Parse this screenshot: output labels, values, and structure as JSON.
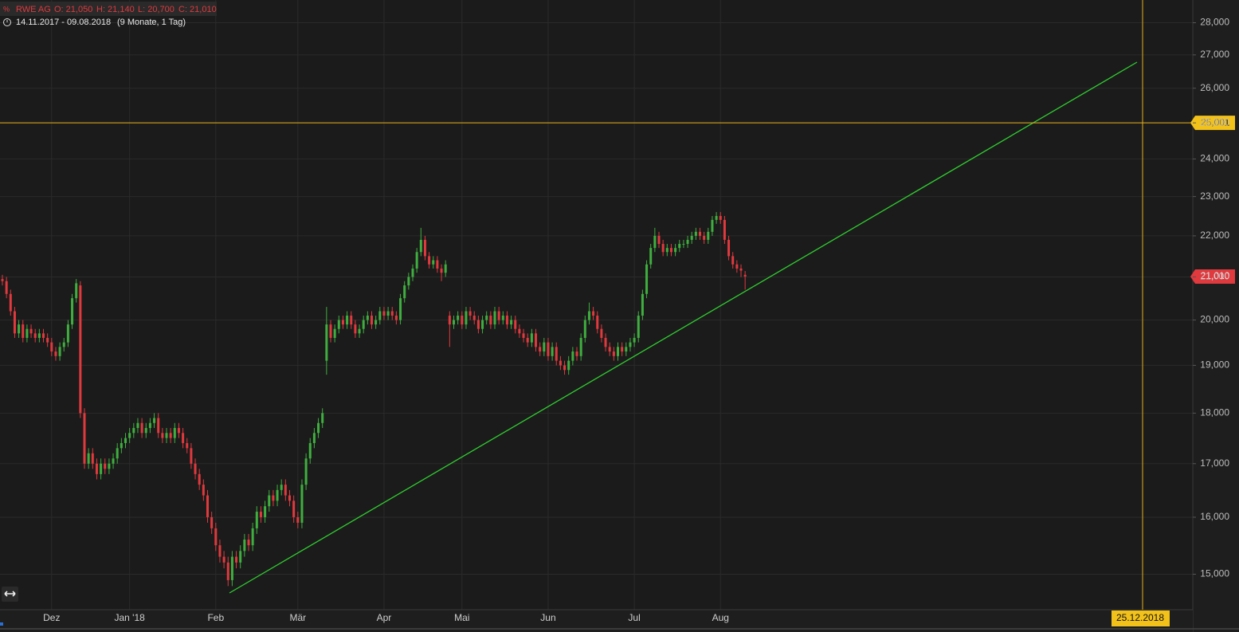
{
  "chart_data": {
    "type": "candlestick",
    "title": "RWE AG",
    "ohlc_labels": [
      "O: 21,050",
      "H: 21,140",
      "L: 20,700",
      "C: 21,010"
    ],
    "subtitle": "14.11.2017 - 09.08.2018",
    "period": "(9 Monate, 1 Tag)",
    "log_scale": true,
    "grid": true,
    "up_color": "#3fae3f",
    "down_color": "#e0393e",
    "ylim": [
      14.41,
      28.73
    ],
    "yticks": [
      {
        "value": 15,
        "label": "15,000"
      },
      {
        "value": 16,
        "label": "16,000"
      },
      {
        "value": 17,
        "label": "17,000"
      },
      {
        "value": 18,
        "label": "18,000"
      },
      {
        "value": 19,
        "label": "19,000"
      },
      {
        "value": 20,
        "label": "20,000"
      },
      {
        "value": 21,
        "label": "21,000"
      },
      {
        "value": 22,
        "label": "22,000"
      },
      {
        "value": 23,
        "label": "23,000"
      },
      {
        "value": 24,
        "label": "24,000"
      },
      {
        "value": 25,
        "label": "25,000"
      },
      {
        "value": 26,
        "label": "26,000"
      },
      {
        "value": 27,
        "label": "27,000"
      },
      {
        "value": 28,
        "label": "28,000"
      }
    ],
    "last_price": {
      "value": 21.01,
      "label": "21,010"
    },
    "crosshair": {
      "value": 25.001,
      "label": "25,001",
      "date": "25.12.2018"
    },
    "categories": [
      null,
      null,
      null,
      null,
      null,
      null,
      null,
      null,
      null,
      null,
      null,
      null,
      "Dez",
      null,
      null,
      null,
      null,
      null,
      null,
      null,
      null,
      null,
      null,
      null,
      null,
      null,
      null,
      null,
      null,
      null,
      null,
      "Jan '18",
      null,
      null,
      null,
      null,
      null,
      null,
      null,
      null,
      null,
      null,
      null,
      null,
      null,
      null,
      null,
      null,
      null,
      null,
      null,
      null,
      "Feb",
      null,
      null,
      null,
      null,
      null,
      null,
      null,
      null,
      null,
      null,
      null,
      null,
      null,
      null,
      null,
      null,
      null,
      null,
      null,
      "Mär",
      null,
      null,
      null,
      null,
      null,
      null,
      null,
      null,
      null,
      null,
      null,
      null,
      null,
      null,
      null,
      null,
      null,
      null,
      null,
      null,
      "Apr",
      null,
      null,
      null,
      null,
      null,
      null,
      null,
      null,
      null,
      null,
      null,
      null,
      null,
      null,
      null,
      null,
      null,
      null,
      "Mai",
      null,
      null,
      null,
      null,
      null,
      null,
      null,
      null,
      null,
      null,
      null,
      null,
      null,
      null,
      null,
      null,
      null,
      null,
      null,
      null,
      "Jun",
      null,
      null,
      null,
      null,
      null,
      null,
      null,
      null,
      null,
      null,
      null,
      null,
      null,
      null,
      null,
      null,
      null,
      null,
      null,
      null,
      "Jul",
      null,
      null,
      null,
      null,
      null,
      null,
      null,
      null,
      null,
      null,
      null,
      null,
      null,
      null,
      null,
      null,
      null,
      null,
      null,
      null,
      "Aug",
      null,
      null,
      null,
      null,
      null,
      null
    ],
    "open": [
      20.95,
      20.9,
      20.6,
      20.2,
      19.7,
      19.9,
      19.6,
      19.8,
      19.7,
      19.6,
      19.7,
      19.6,
      19.5,
      19.3,
      19.2,
      19.4,
      19.5,
      19.9,
      20.5,
      20.8,
      18.0,
      17.0,
      17.2,
      17.0,
      16.8,
      17.0,
      16.9,
      17.0,
      17.1,
      17.3,
      17.4,
      17.5,
      17.6,
      17.7,
      17.8,
      17.6,
      17.7,
      17.8,
      17.9,
      17.6,
      17.5,
      17.6,
      17.5,
      17.7,
      17.6,
      17.4,
      17.3,
      17.0,
      16.8,
      16.6,
      16.4,
      16.0,
      15.8,
      15.5,
      15.3,
      15.2,
      14.9,
      15.3,
      15.2,
      15.4,
      15.6,
      15.5,
      15.8,
      16.1,
      16.0,
      16.2,
      16.4,
      16.3,
      16.5,
      16.6,
      16.4,
      16.3,
      16.0,
      15.9,
      16.6,
      17.1,
      17.4,
      17.6,
      17.8,
      19.1,
      19.9,
      19.6,
      19.8,
      20.0,
      19.9,
      20.1,
      19.9,
      19.7,
      19.8,
      20.0,
      20.1,
      19.9,
      20.0,
      20.2,
      20.1,
      20.2,
      20.1,
      20.0,
      20.5,
      20.8,
      21.0,
      21.2,
      21.6,
      21.9,
      21.5,
      21.3,
      21.4,
      21.2,
      21.1,
      20.1,
      19.9,
      20.0,
      20.1,
      19.9,
      20.2,
      20.1,
      20.0,
      19.8,
      20.0,
      20.1,
      19.9,
      20.2,
      20.0,
      20.1,
      19.9,
      20.0,
      19.8,
      19.7,
      19.6,
      19.5,
      19.7,
      19.4,
      19.3,
      19.5,
      19.2,
      19.4,
      19.1,
      19.0,
      18.9,
      19.1,
      19.3,
      19.2,
      19.6,
      20.0,
      20.2,
      20.1,
      19.8,
      19.6,
      19.4,
      19.3,
      19.2,
      19.4,
      19.3,
      19.4,
      19.5,
      19.6,
      20.1,
      20.6,
      21.3,
      21.7,
      22.0,
      21.8,
      21.6,
      21.7,
      21.6,
      21.7,
      21.8,
      21.8,
      21.9,
      22.0,
      22.1,
      22.0,
      21.9,
      22.1,
      22.4,
      22.5,
      22.4,
      21.9,
      21.5,
      21.3,
      21.2,
      21.05
    ],
    "high": [
      21.05,
      21.0,
      20.7,
      20.3,
      20.0,
      20.0,
      19.9,
      19.9,
      19.8,
      19.8,
      19.8,
      19.7,
      19.6,
      19.4,
      19.5,
      19.6,
      20.0,
      20.6,
      20.95,
      20.9,
      18.1,
      17.3,
      17.3,
      17.1,
      17.1,
      17.1,
      17.1,
      17.2,
      17.4,
      17.5,
      17.6,
      17.7,
      17.8,
      17.9,
      17.9,
      17.8,
      17.9,
      18.0,
      18.0,
      17.7,
      17.7,
      17.7,
      17.8,
      17.8,
      17.7,
      17.5,
      17.4,
      17.1,
      16.9,
      16.7,
      16.5,
      16.1,
      15.9,
      15.6,
      15.4,
      15.3,
      15.4,
      15.4,
      15.5,
      15.7,
      15.7,
      15.9,
      16.2,
      16.2,
      16.3,
      16.5,
      16.5,
      16.6,
      16.7,
      16.7,
      16.5,
      16.4,
      16.1,
      16.7,
      17.2,
      17.5,
      17.7,
      17.9,
      18.1,
      20.3,
      20.0,
      19.9,
      20.1,
      20.1,
      20.2,
      20.2,
      20.0,
      19.9,
      20.1,
      20.2,
      20.2,
      20.1,
      20.3,
      20.3,
      20.3,
      20.3,
      20.2,
      20.6,
      20.9,
      21.1,
      21.3,
      21.7,
      22.2,
      22.0,
      21.6,
      21.5,
      21.5,
      21.3,
      21.4,
      20.2,
      20.1,
      20.2,
      20.2,
      20.3,
      20.3,
      20.2,
      20.1,
      20.1,
      20.2,
      20.2,
      20.3,
      20.3,
      20.2,
      20.2,
      20.1,
      20.1,
      19.9,
      19.8,
      19.7,
      19.8,
      19.8,
      19.5,
      19.6,
      19.6,
      19.5,
      19.5,
      19.2,
      19.1,
      19.2,
      19.4,
      19.4,
      19.7,
      20.1,
      20.4,
      20.3,
      20.2,
      19.9,
      19.7,
      19.5,
      19.4,
      19.5,
      19.5,
      19.5,
      19.6,
      19.7,
      20.2,
      20.7,
      21.4,
      21.8,
      22.2,
      22.1,
      21.9,
      21.8,
      21.8,
      21.8,
      21.9,
      21.9,
      22.0,
      22.1,
      22.2,
      22.2,
      22.1,
      22.2,
      22.5,
      22.6,
      22.6,
      22.5,
      22.0,
      21.6,
      21.4,
      21.3,
      21.14
    ],
    "low": [
      20.8,
      20.5,
      20.1,
      19.6,
      19.6,
      19.5,
      19.5,
      19.6,
      19.5,
      19.5,
      19.5,
      19.4,
      19.2,
      19.1,
      19.1,
      19.3,
      19.4,
      19.8,
      20.4,
      17.9,
      16.9,
      16.9,
      16.9,
      16.7,
      16.7,
      16.8,
      16.8,
      16.9,
      17.0,
      17.2,
      17.3,
      17.4,
      17.5,
      17.6,
      17.5,
      17.5,
      17.6,
      17.7,
      17.5,
      17.4,
      17.4,
      17.4,
      17.4,
      17.5,
      17.3,
      17.2,
      16.9,
      16.7,
      16.5,
      16.3,
      15.9,
      15.7,
      15.4,
      15.2,
      15.1,
      14.8,
      14.8,
      15.1,
      15.1,
      15.3,
      15.4,
      15.4,
      15.7,
      15.9,
      15.9,
      16.1,
      16.2,
      16.2,
      16.4,
      16.3,
      16.2,
      15.9,
      15.8,
      15.8,
      16.5,
      17.0,
      17.3,
      17.5,
      17.7,
      18.8,
      19.5,
      19.5,
      19.7,
      19.8,
      19.8,
      19.8,
      19.6,
      19.6,
      19.7,
      19.9,
      19.8,
      19.8,
      19.9,
      20.0,
      20.0,
      20.0,
      19.9,
      19.9,
      20.4,
      20.7,
      20.9,
      21.1,
      21.5,
      21.4,
      21.2,
      21.2,
      21.1,
      20.9,
      21.0,
      19.4,
      19.8,
      19.9,
      19.8,
      19.8,
      20.0,
      19.9,
      19.7,
      19.7,
      19.9,
      19.8,
      19.8,
      19.9,
      19.9,
      19.8,
      19.8,
      19.7,
      19.6,
      19.5,
      19.4,
      19.4,
      19.3,
      19.2,
      19.2,
      19.1,
      19.1,
      19.0,
      18.9,
      18.8,
      18.8,
      19.0,
      19.1,
      19.1,
      19.5,
      19.9,
      20.0,
      19.7,
      19.5,
      19.3,
      19.2,
      19.1,
      19.1,
      19.2,
      19.2,
      19.3,
      19.4,
      19.5,
      20.0,
      20.5,
      21.2,
      21.6,
      21.7,
      21.5,
      21.5,
      21.5,
      21.5,
      21.6,
      21.7,
      21.7,
      21.8,
      21.9,
      21.9,
      21.8,
      21.8,
      22.0,
      22.3,
      22.3,
      21.8,
      21.4,
      21.2,
      21.1,
      21.0,
      20.7
    ],
    "close": [
      20.9,
      20.6,
      20.2,
      19.7,
      19.9,
      19.6,
      19.8,
      19.7,
      19.6,
      19.7,
      19.6,
      19.5,
      19.3,
      19.2,
      19.4,
      19.5,
      19.9,
      20.5,
      20.85,
      18.0,
      17.0,
      17.2,
      17.0,
      16.8,
      17.0,
      16.9,
      17.0,
      17.1,
      17.3,
      17.4,
      17.5,
      17.6,
      17.7,
      17.8,
      17.6,
      17.7,
      17.8,
      17.9,
      17.6,
      17.5,
      17.6,
      17.5,
      17.7,
      17.6,
      17.4,
      17.3,
      17.0,
      16.8,
      16.6,
      16.4,
      16.0,
      15.8,
      15.5,
      15.3,
      15.2,
      14.9,
      15.3,
      15.2,
      15.4,
      15.6,
      15.5,
      15.8,
      16.1,
      16.0,
      16.2,
      16.4,
      16.3,
      16.5,
      16.6,
      16.4,
      16.3,
      16.0,
      15.9,
      16.6,
      17.1,
      17.4,
      17.6,
      17.8,
      18.0,
      19.9,
      19.6,
      19.8,
      20.0,
      19.9,
      20.1,
      19.9,
      19.7,
      19.8,
      20.0,
      20.1,
      19.9,
      20.0,
      20.2,
      20.1,
      20.2,
      20.1,
      20.0,
      20.5,
      20.8,
      21.0,
      21.2,
      21.6,
      21.9,
      21.5,
      21.3,
      21.4,
      21.2,
      21.1,
      21.3,
      19.9,
      20.0,
      20.1,
      19.9,
      20.2,
      20.1,
      20.0,
      19.8,
      20.0,
      20.1,
      19.9,
      20.2,
      20.0,
      20.1,
      19.9,
      20.0,
      19.8,
      19.7,
      19.6,
      19.5,
      19.7,
      19.4,
      19.3,
      19.5,
      19.2,
      19.4,
      19.1,
      19.0,
      18.9,
      19.1,
      19.3,
      19.2,
      19.6,
      20.0,
      20.2,
      20.1,
      19.8,
      19.6,
      19.4,
      19.3,
      19.2,
      19.4,
      19.3,
      19.4,
      19.5,
      19.6,
      20.1,
      20.6,
      21.3,
      21.7,
      22.0,
      21.8,
      21.6,
      21.7,
      21.6,
      21.7,
      21.8,
      21.8,
      21.9,
      22.0,
      22.1,
      22.0,
      21.9,
      22.1,
      22.4,
      22.5,
      22.4,
      21.9,
      21.5,
      21.3,
      21.2,
      21.15,
      21.01
    ]
  }
}
